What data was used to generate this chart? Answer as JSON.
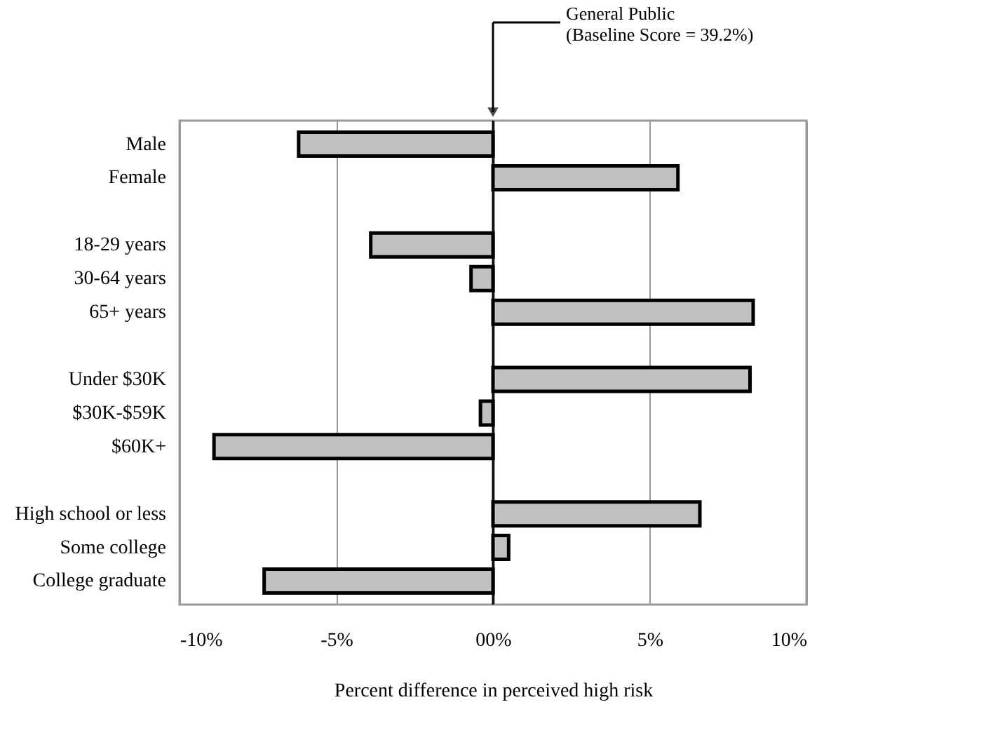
{
  "chart_data": {
    "type": "bar",
    "orientation": "horizontal",
    "categories": [
      "Male",
      "Female",
      null,
      "18-29 years",
      "30-64 years",
      "65+ years",
      null,
      "Under $30K",
      "$30K-$59K",
      "$60K+",
      null,
      "High school or less",
      "Some college",
      "College graduate"
    ],
    "values": [
      -6.2,
      5.9,
      null,
      -3.9,
      -0.7,
      8.3,
      null,
      8.2,
      -0.4,
      -8.9,
      null,
      6.6,
      0.5,
      -7.3
    ],
    "color": "#c0c0c0",
    "xlim": [
      -10,
      10
    ],
    "xticks": [
      {
        "value": -10,
        "label": "-10%"
      },
      {
        "value": -5,
        "label": "-5%"
      },
      {
        "value": 0,
        "label": "00%"
      },
      {
        "value": 5,
        "label": "5%"
      },
      {
        "value": 10,
        "label": "10%"
      }
    ],
    "xlabel": "Percent difference in perceived high risk",
    "grid": "x",
    "ref_lines": [
      {
        "axis": "x",
        "value": 0,
        "color": "#000000"
      }
    ],
    "annotations": [
      "General Public\n(Baseline Score = 39.2%)"
    ]
  }
}
